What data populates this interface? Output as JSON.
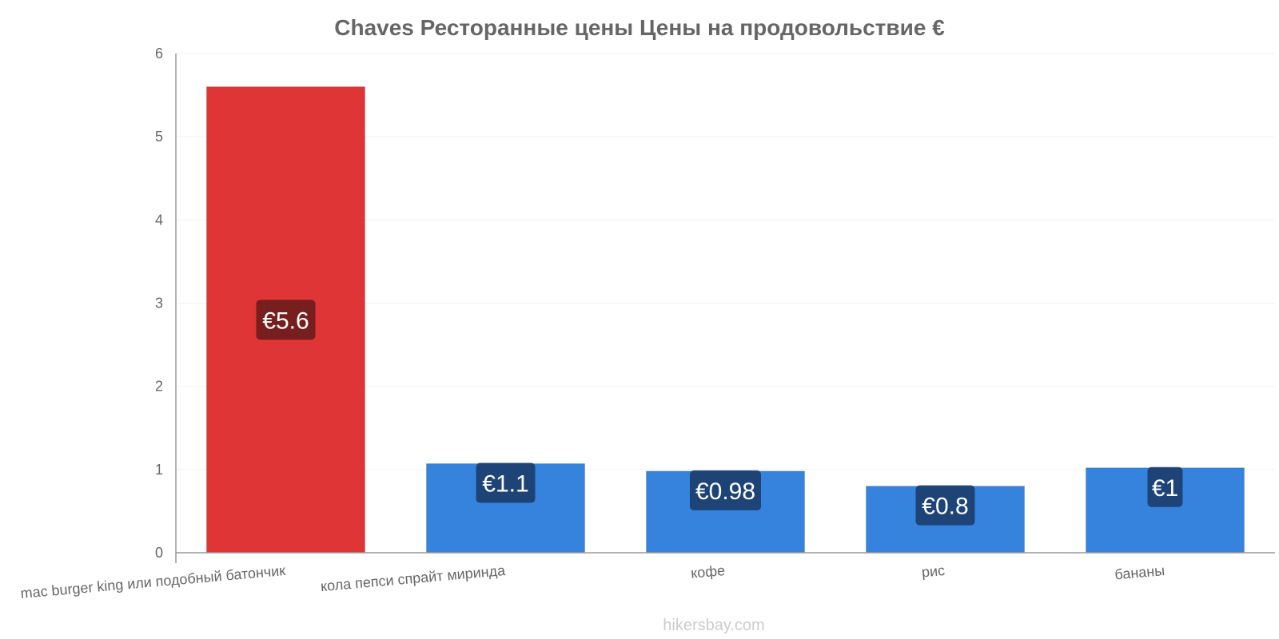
{
  "chart_data": {
    "type": "bar",
    "title": "Chaves Ресторанные цены Цены на продовольствие €",
    "categories": [
      "mac burger king или подобный батончик",
      "кола пепси спрайт миринда",
      "кофе",
      "рис",
      "бананы"
    ],
    "values": [
      5.6,
      1.07,
      0.98,
      0.8,
      1.02
    ],
    "labels": [
      "€5.6",
      "€1.1",
      "€0.98",
      "€0.8",
      "€1"
    ],
    "colors": [
      "#e03536",
      "#3683dd",
      "#3683dd",
      "#3683dd",
      "#3683dd"
    ],
    "label_bg": [
      "#6e1c1c",
      "#1c3f6e",
      "#1c3f6e",
      "#1c3f6e",
      "#1c3f6e"
    ],
    "ylim": [
      0,
      6
    ],
    "yticks": [
      "0",
      "1",
      "2",
      "3",
      "4",
      "5",
      "6"
    ],
    "grid": true,
    "xlabel": "",
    "ylabel": ""
  },
  "watermark": "hikersbay.com"
}
